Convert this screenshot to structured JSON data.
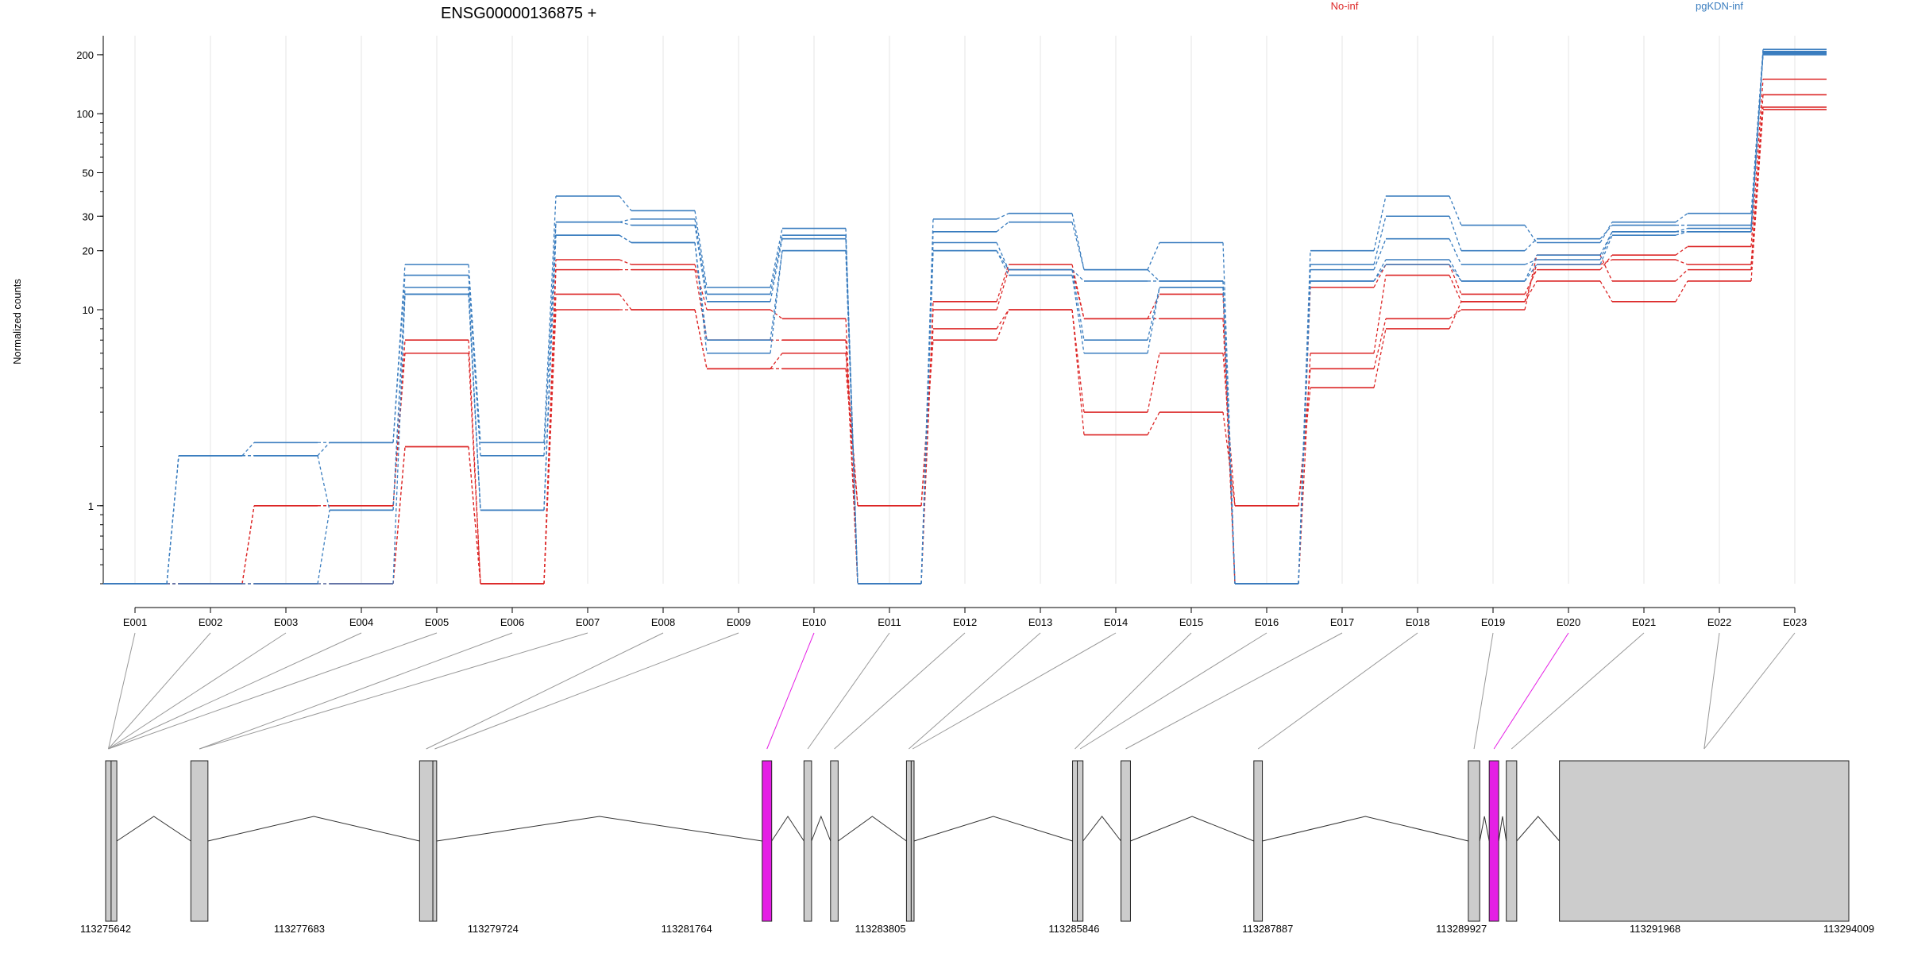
{
  "title": "ENSG00000136875 +",
  "colors": {
    "No-inf": "#dc2626",
    "pgKDN-inf": "#3a7dbf",
    "highlight": "#e51fe5",
    "exon": "#cccccc"
  },
  "chart_data": {
    "type": "line",
    "title": "ENSG00000136875 +",
    "xlabel": "",
    "ylabel": "Normalized counts",
    "yscale": "log",
    "ylim": [
      0.4,
      250
    ],
    "yticks": [
      1,
      10,
      20,
      30,
      50,
      100,
      200
    ],
    "grid": "vertical",
    "legend": [
      {
        "name": "No-inf",
        "position": "top-center"
      },
      {
        "name": "pgKDN-inf",
        "position": "top-right"
      }
    ],
    "categories": [
      "E001",
      "E002",
      "E003",
      "E004",
      "E005",
      "E006",
      "E007",
      "E008",
      "E009",
      "E010",
      "E011",
      "E012",
      "E013",
      "E014",
      "E015",
      "E016",
      "E017",
      "E018",
      "E019",
      "E020",
      "E021",
      "E022",
      "E023"
    ],
    "highlighted_exons": [
      "E010",
      "E020"
    ],
    "series": [
      {
        "name": "No-inf",
        "values": [
          0.4,
          0.4,
          1,
          1,
          7,
          0.4,
          18,
          17,
          10,
          9,
          0.4,
          11,
          17,
          9,
          12,
          0.4,
          13,
          17,
          12,
          16,
          19,
          21,
          150
        ]
      },
      {
        "name": "No-inf",
        "values": [
          0.4,
          0.4,
          1,
          1,
          6,
          0.4,
          16,
          16,
          7,
          7,
          0.4,
          10,
          16,
          9,
          9,
          0.4,
          6,
          15,
          11,
          17,
          18,
          17,
          125
        ]
      },
      {
        "name": "No-inf",
        "values": [
          0.4,
          0.4,
          0.4,
          0.4,
          2,
          0.4,
          12,
          10,
          5,
          6,
          1,
          8,
          10,
          3,
          6,
          1,
          5,
          9,
          10,
          19,
          14,
          16,
          108
        ]
      },
      {
        "name": "No-inf",
        "values": [
          0.4,
          0.4,
          0.4,
          0.4,
          2,
          0.4,
          10,
          10,
          5,
          5,
          1,
          7,
          10,
          2.3,
          3,
          1,
          4,
          8,
          11,
          14,
          11,
          14,
          105
        ]
      },
      {
        "name": "pgKDN-inf",
        "values": [
          0.4,
          1.8,
          2.1,
          2.1,
          17,
          2.1,
          38,
          32,
          13,
          26,
          0.4,
          29,
          31,
          16,
          22,
          0.4,
          20,
          38,
          27,
          22,
          28,
          31,
          213
        ]
      },
      {
        "name": "pgKDN-inf",
        "values": [
          0.4,
          1.8,
          1.8,
          2.1,
          15,
          1.8,
          28,
          29,
          12,
          24,
          0.4,
          25,
          28,
          16,
          14,
          0.4,
          17,
          30,
          20,
          23,
          27,
          27,
          208
        ]
      },
      {
        "name": "pgKDN-inf",
        "values": [
          0.4,
          1.8,
          1.8,
          0.95,
          13,
          0.95,
          28,
          27,
          11,
          23,
          0.4,
          22,
          16,
          14,
          14,
          0.4,
          16,
          23,
          17,
          18,
          25,
          26,
          205
        ]
      },
      {
        "name": "pgKDN-inf",
        "values": [
          0.4,
          0.4,
          0.4,
          0.95,
          12,
          0.95,
          24,
          22,
          7,
          20,
          0.4,
          20,
          16,
          7,
          13,
          0.4,
          14,
          18,
          14,
          19,
          25,
          25,
          202
        ]
      },
      {
        "name": "pgKDN-inf",
        "values": [
          0.4,
          0.4,
          0.4,
          0.4,
          12,
          0.95,
          24,
          22,
          6,
          20,
          0.4,
          20,
          15,
          6,
          13,
          0.4,
          14,
          17,
          14,
          17,
          24,
          25,
          200
        ]
      }
    ],
    "genomic_axis_ticks": [
      "113275642",
      "113277683",
      "113279724",
      "113281764",
      "113283805",
      "113285846",
      "113287887",
      "113289927",
      "113291968",
      "113294009"
    ],
    "exon_ranges": [
      [
        113275642,
        113275700
      ],
      [
        113275700,
        113275760
      ],
      [
        113276540,
        113276720
      ],
      [
        113278950,
        113279090
      ],
      [
        113279090,
        113279130
      ],
      [
        113282560,
        113282660
      ],
      [
        113283000,
        113283080
      ],
      [
        113283280,
        113283360
      ],
      [
        113284080,
        113284130
      ],
      [
        113284130,
        113284160
      ],
      [
        113285830,
        113285880
      ],
      [
        113285880,
        113285940
      ],
      [
        113286340,
        113286440
      ],
      [
        113287740,
        113287830
      ],
      [
        113290000,
        113290120
      ],
      [
        113290220,
        113290320
      ],
      [
        113290400,
        113290510
      ],
      [
        113290960,
        113294009
      ]
    ],
    "exon_links": [
      [
        0,
        0
      ],
      [
        1,
        0
      ],
      [
        2,
        0
      ],
      [
        3,
        0
      ],
      [
        4,
        0
      ],
      [
        5,
        2
      ],
      [
        6,
        2
      ],
      [
        7,
        3
      ],
      [
        8,
        4
      ],
      [
        9,
        5
      ],
      [
        10,
        6
      ],
      [
        11,
        7
      ],
      [
        12,
        8
      ],
      [
        13,
        9
      ],
      [
        14,
        10
      ],
      [
        15,
        11
      ],
      [
        16,
        12
      ],
      [
        17,
        13
      ],
      [
        18,
        14
      ],
      [
        19,
        15
      ],
      [
        20,
        16
      ],
      [
        21,
        17
      ],
      [
        22,
        17
      ]
    ]
  }
}
